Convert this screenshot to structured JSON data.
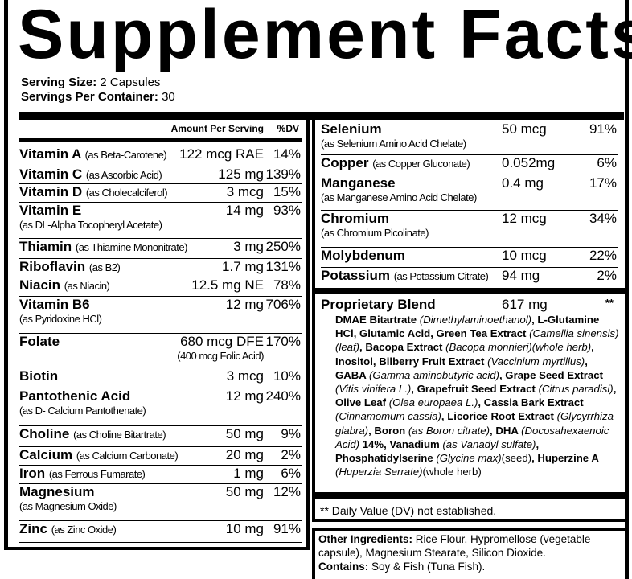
{
  "title": "Supplement Facts",
  "serving": {
    "size_label": "Serving Size:",
    "size_value": "2 Capsules",
    "per_label": "Servings Per Container:",
    "per_value": "30"
  },
  "header": {
    "amount": "Amount Per Serving",
    "dv": "%DV"
  },
  "left_rows": [
    {
      "name": "Vitamin A",
      "source": "(as Beta-Carotene)",
      "amount": "122 mcg RAE",
      "dv": "14%"
    },
    {
      "name": "Vitamin C",
      "source": "(as Ascorbic Acid)",
      "amount": "125 mg",
      "dv": "139%"
    },
    {
      "name": "Vitamin D",
      "source": "(as Cholecalciferol)",
      "amount": "3 mcg",
      "dv": "15%"
    },
    {
      "name": "Vitamin E",
      "source2": "(as DL-Alpha Tocopheryl Acetate)",
      "amount": "14 mg",
      "dv": "93%"
    },
    {
      "name": "Thiamin",
      "source": "(as Thiamine Mononitrate)",
      "amount": "3 mg",
      "dv": "250%"
    },
    {
      "name": "Riboflavin",
      "source": "(as B2)",
      "amount": "1.7 mg",
      "dv": "131%"
    },
    {
      "name": "Niacin",
      "source": "(as Niacin)",
      "amount": "12.5 mg NE",
      "dv": "78%"
    },
    {
      "name": "Vitamin B6",
      "source2": "(as Pyridoxine HCl)",
      "amount": "12 mg",
      "dv": "706%"
    },
    {
      "name": "Folate",
      "amount": "680 mcg DFE",
      "amount2": "(400 mcg Folic Acid)",
      "dv": "170%"
    },
    {
      "name": "Biotin",
      "amount": "3 mcg",
      "dv": "10%"
    },
    {
      "name": "Pantothenic Acid",
      "source2": "(as D- Calcium Pantothenate)",
      "amount": "12 mg",
      "dv": "240%"
    },
    {
      "name": "Choline",
      "source": "(as Choline Bitartrate)",
      "amount": "50 mg",
      "dv": "9%"
    },
    {
      "name": "Calcium",
      "source": "(as Calcium Carbonate)",
      "amount": "20 mg",
      "dv": "2%"
    },
    {
      "name": "Iron",
      "source": "(as Ferrous Fumarate)",
      "amount": "1 mg",
      "dv": "6%"
    },
    {
      "name": "Magnesium",
      "source2": "(as Magnesium Oxide)",
      "amount": "50 mg",
      "dv": "12%"
    },
    {
      "name": "Zinc",
      "source": "(as Zinc Oxide)",
      "amount": "10 mg",
      "dv": "91%"
    }
  ],
  "right_rows": [
    {
      "name": "Selenium",
      "source2": "(as Selenium Amino Acid Chelate)",
      "amount": "50 mcg",
      "dv": "91%"
    },
    {
      "name": "Copper",
      "source": "(as Copper Gluconate)",
      "amount": "0.052mg",
      "dv": "6%"
    },
    {
      "name": "Manganese",
      "source2": "(as Manganese Amino Acid Chelate)",
      "amount": "0.4 mg",
      "dv": "17%"
    },
    {
      "name": "Chromium",
      "source2": "(as Chromium Picolinate)",
      "amount": "12 mcg",
      "dv": "34%"
    },
    {
      "name": "Molybdenum",
      "amount": "10 mcg",
      "dv": "22%"
    },
    {
      "name": "Potassium",
      "source": "(as Potassium Citrate)",
      "amount": "94 mg",
      "dv": "2%"
    }
  ],
  "blend": {
    "name": "Proprietary Blend",
    "amount": "617 mg",
    "dv": "**",
    "segments": [
      {
        "t": "DMAE Bitartrate ",
        "s": "b"
      },
      {
        "t": "(Dimethylaminoethanol)",
        "s": "i"
      },
      {
        "t": ", L-Glutamine HCl, Glutamic Acid, Green Tea Extract ",
        "s": "b"
      },
      {
        "t": "(Camellia sinensis)(leaf)",
        "s": "i"
      },
      {
        "t": ", Bacopa Extract ",
        "s": "b"
      },
      {
        "t": "(Bacopa monnieri)(whole herb)",
        "s": "i"
      },
      {
        "t": ", Inositol, Bilberry Fruit Extract ",
        "s": "b"
      },
      {
        "t": "(Vaccinium myrtillus)",
        "s": "i"
      },
      {
        "t": ", GABA ",
        "s": "b"
      },
      {
        "t": "(Gamma aminobutyric acid)",
        "s": "i"
      },
      {
        "t": ", Grape Seed Extract ",
        "s": "b"
      },
      {
        "t": "(Vitis vinifera L.)",
        "s": "i"
      },
      {
        "t": ", Grapefruit Seed Extract ",
        "s": "b"
      },
      {
        "t": "(Citrus paradisi)",
        "s": "i"
      },
      {
        "t": ", Olive Leaf ",
        "s": "b"
      },
      {
        "t": "(Olea europaea L.)",
        "s": "i"
      },
      {
        "t": ", Cassia Bark Extract ",
        "s": "b"
      },
      {
        "t": "(Cinnamomum cassia)",
        "s": "i"
      },
      {
        "t": ", Licorice Root Extract ",
        "s": "b"
      },
      {
        "t": "(Glycyrrhiza glabra)",
        "s": "i"
      },
      {
        "t": ", Boron ",
        "s": "b"
      },
      {
        "t": "(as Boron citrate)",
        "s": "i"
      },
      {
        "t": ", DHA ",
        "s": "b"
      },
      {
        "t": "(Docosahexaenoic Acid)",
        "s": "i"
      },
      {
        "t": " 14%, Vanadium ",
        "s": "b"
      },
      {
        "t": "(as Vanadyl sulfate)",
        "s": "i"
      },
      {
        "t": ", Phosphatidylserine ",
        "s": "b"
      },
      {
        "t": "(Glycine max)",
        "s": "i"
      },
      {
        "t": "(seed)",
        "s": "n"
      },
      {
        "t": ", Huperzine A ",
        "s": "b"
      },
      {
        "t": "(Huperzia Serrate)",
        "s": "i"
      },
      {
        "t": "(whole herb)",
        "s": "n"
      }
    ]
  },
  "dv_note": "** Daily Value (DV) not established.",
  "other": {
    "label": "Other Ingredients:",
    "value": "Rice Flour, Hypromellose (vegetable capsule), Magnesium Stearate, Silicon Dioxide.",
    "contains_label": "Contains:",
    "contains_value": "Soy & Fish (Tuna Fish)."
  }
}
